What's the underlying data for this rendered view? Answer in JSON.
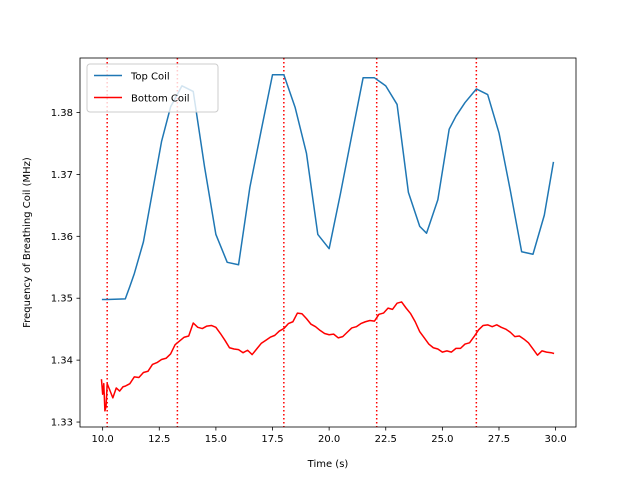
{
  "chart_data": {
    "type": "line",
    "title": "",
    "xlabel": "Time (s)",
    "ylabel": "Frequency of Breathing Coil (MHz)",
    "xlim": [
      9.0,
      30.9
    ],
    "ylim": [
      1.3292,
      1.3888
    ],
    "xticks": [
      10.0,
      12.5,
      15.0,
      17.5,
      20.0,
      22.5,
      25.0,
      27.5,
      30.0
    ],
    "xtick_labels": [
      "10.0",
      "12.5",
      "15.0",
      "17.5",
      "20.0",
      "22.5",
      "25.0",
      "27.5",
      "30.0"
    ],
    "yticks": [
      1.33,
      1.34,
      1.35,
      1.36,
      1.37,
      1.38
    ],
    "ytick_labels": [
      "1.33",
      "1.34",
      "1.35",
      "1.36",
      "1.37",
      "1.38"
    ],
    "grid": false,
    "legend": "top-left",
    "vlines": {
      "x": [
        10.2,
        13.3,
        18.0,
        22.1,
        26.5
      ],
      "color": "#ff0000",
      "style": "dotted"
    },
    "series": [
      {
        "name": "Top Coil",
        "color": "#1f77b4",
        "x": [
          10.0,
          10.2,
          11.0,
          11.2,
          11.4,
          11.8,
          12.2,
          12.6,
          13.0,
          13.5,
          14.0,
          14.5,
          15.0,
          15.5,
          16.0,
          16.5,
          17.0,
          17.5,
          18.0,
          18.5,
          19.0,
          19.5,
          20.0,
          20.5,
          21.0,
          21.5,
          22.0,
          22.5,
          23.0,
          23.5,
          24.0,
          24.3,
          24.8,
          25.3,
          25.6,
          26.0,
          26.5,
          27.0,
          27.5,
          28.0,
          28.5,
          29.0,
          29.5,
          29.9
        ],
        "y": [
          1.3498,
          1.3498,
          1.3499,
          1.3519,
          1.354,
          1.3591,
          1.3672,
          1.3753,
          1.3809,
          1.3843,
          1.3834,
          1.3712,
          1.3603,
          1.3558,
          1.3554,
          1.3679,
          1.3771,
          1.3861,
          1.3861,
          1.3808,
          1.3734,
          1.3603,
          1.358,
          1.3669,
          1.3763,
          1.3856,
          1.3856,
          1.3843,
          1.3813,
          1.3671,
          1.3616,
          1.3605,
          1.3659,
          1.3773,
          1.3794,
          1.3816,
          1.3838,
          1.3829,
          1.3767,
          1.3674,
          1.3575,
          1.3571,
          1.3634,
          1.3719
        ]
      },
      {
        "name": "Bottom Coil",
        "color": "#ff0000",
        "x": [
          9.95,
          10.0,
          10.05,
          10.1,
          10.15,
          10.2,
          10.3,
          10.45,
          10.6,
          10.75,
          10.9,
          11.0,
          11.2,
          11.4,
          11.6,
          11.8,
          12.0,
          12.2,
          12.4,
          12.6,
          12.8,
          13.0,
          13.2,
          13.4,
          13.6,
          13.8,
          14.0,
          14.2,
          14.4,
          14.6,
          14.8,
          15.0,
          15.2,
          15.4,
          15.6,
          15.8,
          16.0,
          16.2,
          16.4,
          16.6,
          16.8,
          17.0,
          17.2,
          17.4,
          17.6,
          17.8,
          18.0,
          18.2,
          18.4,
          18.6,
          18.8,
          19.0,
          19.2,
          19.4,
          19.6,
          19.8,
          20.0,
          20.2,
          20.4,
          20.6,
          20.8,
          21.0,
          21.2,
          21.4,
          21.6,
          21.8,
          22.0,
          22.2,
          22.4,
          22.6,
          22.8,
          23.0,
          23.2,
          23.4,
          23.6,
          23.8,
          24.0,
          24.2,
          24.4,
          24.6,
          24.8,
          25.0,
          25.2,
          25.4,
          25.6,
          25.8,
          26.0,
          26.2,
          26.4,
          26.6,
          26.8,
          27.0,
          27.2,
          27.4,
          27.6,
          27.8,
          28.0,
          28.2,
          28.4,
          28.6,
          28.8,
          29.0,
          29.2,
          29.4,
          29.6,
          29.8,
          29.9
        ],
        "y": [
          1.3368,
          1.3345,
          1.3362,
          1.3318,
          1.3325,
          1.3362,
          1.3353,
          1.3339,
          1.3355,
          1.335,
          1.3357,
          1.3358,
          1.3362,
          1.3373,
          1.3372,
          1.338,
          1.3382,
          1.3393,
          1.3396,
          1.3401,
          1.3403,
          1.341,
          1.3425,
          1.3431,
          1.3437,
          1.3439,
          1.346,
          1.3453,
          1.3451,
          1.3455,
          1.3456,
          1.3453,
          1.3443,
          1.3432,
          1.342,
          1.3418,
          1.3417,
          1.3412,
          1.3416,
          1.3409,
          1.3418,
          1.3427,
          1.3432,
          1.3437,
          1.344,
          1.3447,
          1.3451,
          1.3459,
          1.3462,
          1.3476,
          1.3475,
          1.3467,
          1.3458,
          1.3454,
          1.3448,
          1.3443,
          1.3441,
          1.3442,
          1.3436,
          1.3438,
          1.3445,
          1.3452,
          1.3454,
          1.3459,
          1.3462,
          1.3464,
          1.3463,
          1.3474,
          1.3476,
          1.3484,
          1.3482,
          1.3492,
          1.3494,
          1.3484,
          1.3475,
          1.3462,
          1.3446,
          1.3436,
          1.3426,
          1.342,
          1.3418,
          1.3413,
          1.3415,
          1.3413,
          1.3419,
          1.3419,
          1.3426,
          1.3428,
          1.3438,
          1.3449,
          1.3456,
          1.3457,
          1.3454,
          1.3457,
          1.3453,
          1.345,
          1.3445,
          1.3438,
          1.3439,
          1.3434,
          1.3428,
          1.3418,
          1.3408,
          1.3415,
          1.3413,
          1.3412,
          1.3411
        ]
      }
    ]
  }
}
